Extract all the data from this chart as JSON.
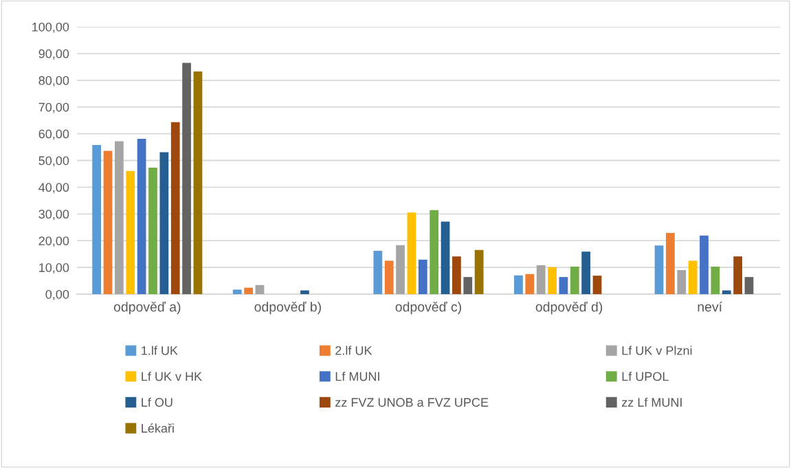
{
  "chart_data": {
    "type": "bar",
    "categories": [
      "odpověď a)",
      "odpověď b)",
      "odpověď c)",
      "odpověď d)",
      "neví"
    ],
    "series": [
      {
        "name": "1.lf UK",
        "color": "#5b9bd5",
        "values": [
          55.8,
          1.7,
          16.2,
          7.0,
          18.2
        ]
      },
      {
        "name": "2.lf UK",
        "color": "#ed7d31",
        "values": [
          53.6,
          2.4,
          12.5,
          7.5,
          22.9
        ]
      },
      {
        "name": "Lf UK v Plzni",
        "color": "#a5a5a5",
        "values": [
          57.2,
          3.4,
          18.3,
          10.8,
          9.0
        ]
      },
      {
        "name": "Lf UK v HK",
        "color": "#ffc000",
        "values": [
          46.1,
          0,
          30.5,
          10.1,
          12.5
        ]
      },
      {
        "name": "Lf MUNI",
        "color": "#4472c4",
        "values": [
          58.1,
          0,
          12.9,
          6.4,
          21.9
        ]
      },
      {
        "name": "Lf UPOL",
        "color": "#70ad47",
        "values": [
          47.3,
          0,
          31.4,
          10.3,
          10.3
        ]
      },
      {
        "name": "Lf OU",
        "color": "#255e91",
        "values": [
          53.1,
          1.4,
          27.1,
          15.9,
          1.4
        ]
      },
      {
        "name": "zz FVZ UNOB a FVZ UPCE",
        "color": "#9e480e",
        "values": [
          64.3,
          0,
          14.1,
          6.9,
          14.1
        ]
      },
      {
        "name": "zz Lf MUNI",
        "color": "#636363",
        "values": [
          86.5,
          0,
          6.4,
          0,
          6.4
        ]
      },
      {
        "name": "Lékaři",
        "color": "#997300",
        "values": [
          83.3,
          0,
          16.5,
          0,
          0
        ]
      }
    ],
    "ylim": [
      0,
      100
    ],
    "yticks": [
      {
        "value": 0,
        "label": "0,00"
      },
      {
        "value": 10,
        "label": "10,00"
      },
      {
        "value": 20,
        "label": "20,00"
      },
      {
        "value": 30,
        "label": "30,00"
      },
      {
        "value": 40,
        "label": "40,00"
      },
      {
        "value": 50,
        "label": "50,00"
      },
      {
        "value": 60,
        "label": "60,00"
      },
      {
        "value": 70,
        "label": "70,00"
      },
      {
        "value": 80,
        "label": "80,00"
      },
      {
        "value": 90,
        "label": "90,00"
      },
      {
        "value": 100,
        "label": "100,00"
      }
    ],
    "grid": "y",
    "legend": "bottom"
  }
}
